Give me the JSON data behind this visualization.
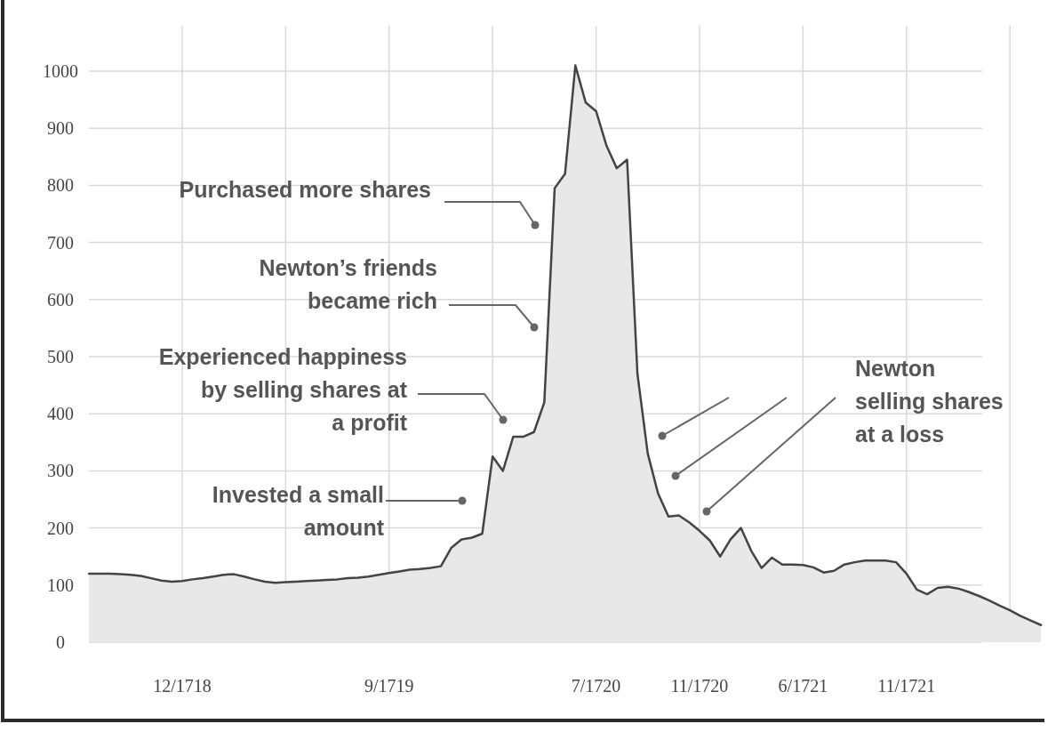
{
  "chart_data": {
    "type": "area",
    "categories": [
      null,
      null,
      null,
      null,
      null,
      null,
      null,
      null,
      null,
      "12/1718",
      null,
      null,
      null,
      null,
      null,
      null,
      null,
      null,
      null,
      null,
      null,
      null,
      null,
      null,
      null,
      null,
      null,
      null,
      null,
      "9/1719",
      null,
      null,
      null,
      null,
      null,
      null,
      null,
      null,
      null,
      null,
      null,
      null,
      null,
      null,
      null,
      null,
      null,
      null,
      null,
      "7/1720",
      null,
      null,
      null,
      null,
      null,
      null,
      null,
      null,
      null,
      "11/1720",
      null,
      null,
      null,
      null,
      null,
      null,
      null,
      null,
      null,
      "6/1721",
      null,
      null,
      null,
      null,
      null,
      null,
      null,
      null,
      null,
      "11/1721",
      null,
      null,
      null,
      null,
      null,
      null,
      null,
      null,
      null,
      null,
      null,
      null,
      null
    ],
    "series": [
      {
        "color": "#444444",
        "values": [
          120,
          120,
          120,
          119,
          118,
          116,
          112,
          108,
          106,
          107,
          110,
          112,
          115,
          118,
          119,
          115,
          110,
          106,
          104,
          105,
          106,
          107,
          108,
          109,
          110,
          112,
          113,
          115,
          118,
          121,
          124,
          127,
          128,
          130,
          133,
          165,
          180,
          183,
          190,
          325,
          300,
          360,
          360,
          368,
          420,
          795,
          820,
          1010,
          945,
          930,
          870,
          830,
          845,
          470,
          330,
          260,
          220,
          222,
          210,
          195,
          178,
          150,
          180,
          200,
          160,
          130,
          148,
          136,
          136,
          135,
          131,
          122,
          125,
          136,
          140,
          143,
          143,
          143,
          140,
          120,
          92,
          84,
          95,
          97,
          94,
          88,
          81,
          73,
          64,
          56,
          46,
          38,
          30
        ]
      }
    ],
    "ylim": [
      0,
      1080
    ],
    "yticks": [
      0,
      100,
      200,
      300,
      400,
      500,
      600,
      700,
      800,
      900,
      1000
    ],
    "grid": true,
    "annotations": [
      "Purchased more shares",
      "Newton’s friends\nbecame rich",
      "Experienced happiness\nby selling shares at\na profit",
      "Invested a small\namount",
      "Newton\nselling shares\nat a loss"
    ]
  }
}
